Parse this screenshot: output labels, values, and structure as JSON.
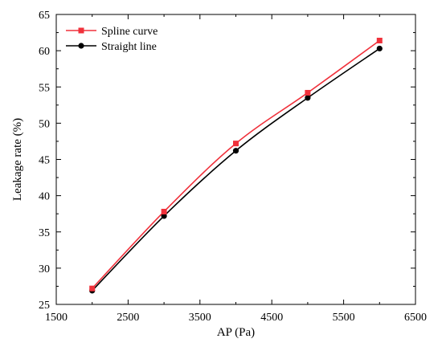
{
  "chart_data": {
    "type": "line",
    "xlabel": "AP (Pa)",
    "ylabel": "Leakage rate (%)",
    "xlim": [
      1500,
      6500
    ],
    "ylim": [
      25,
      65
    ],
    "xticks": [
      1500,
      2500,
      3500,
      4500,
      5500,
      6500
    ],
    "yticks": [
      25,
      30,
      35,
      40,
      45,
      50,
      55,
      60,
      65
    ],
    "legend_position": "top-left",
    "grid": false,
    "series": [
      {
        "name": "Spline curve",
        "color": "#f0313b",
        "marker": "square",
        "x": [
          2000,
          3000,
          4000,
          5000,
          6000
        ],
        "y": [
          27.2,
          37.8,
          47.2,
          54.2,
          61.4
        ]
      },
      {
        "name": "Straight line",
        "color": "#000000",
        "marker": "circle",
        "x": [
          2000,
          3000,
          4000,
          5000,
          6000
        ],
        "y": [
          26.9,
          37.2,
          46.2,
          53.5,
          60.3
        ]
      }
    ]
  }
}
